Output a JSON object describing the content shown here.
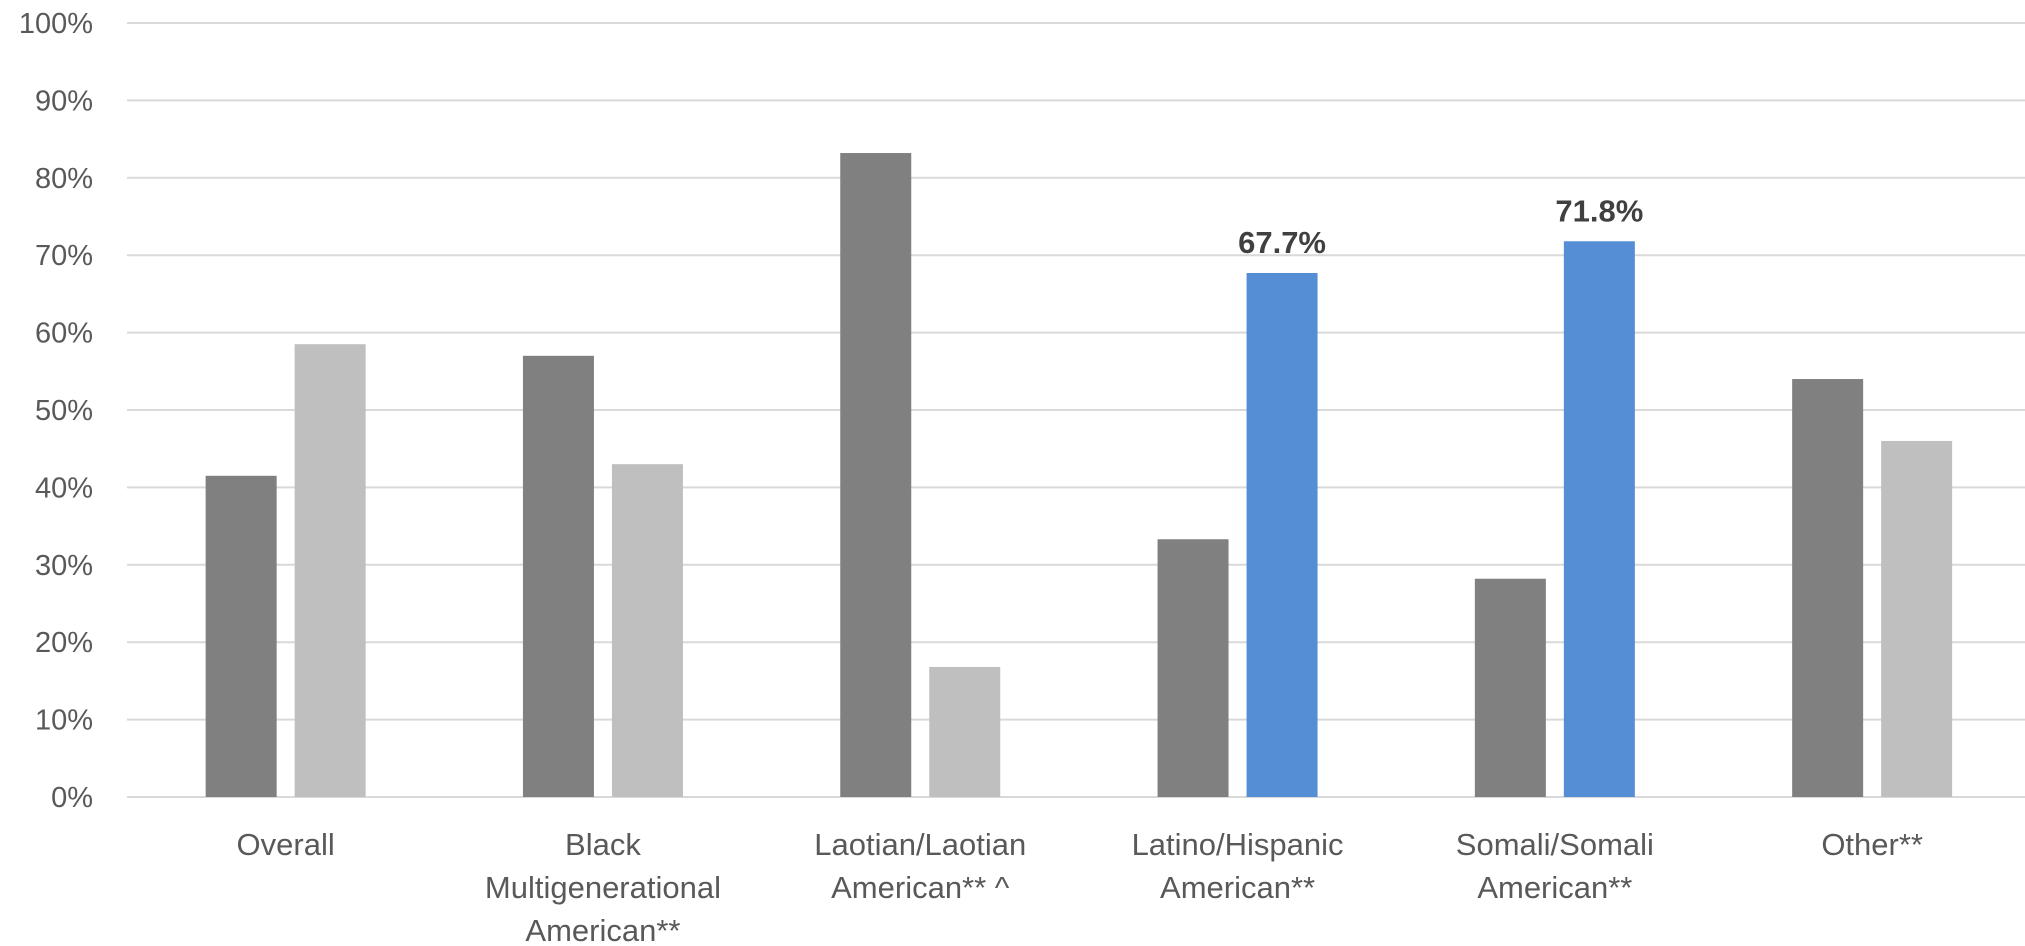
{
  "chart_data": {
    "type": "bar",
    "title": "",
    "xlabel": "",
    "ylabel": "",
    "ylim": [
      0,
      100
    ],
    "yticks": [
      "0%",
      "10%",
      "20%",
      "30%",
      "40%",
      "50%",
      "60%",
      "70%",
      "80%",
      "90%",
      "100%"
    ],
    "grid": true,
    "legend": "none",
    "categories": [
      [
        "Overall"
      ],
      [
        "Black",
        "Multigenerational",
        "American**"
      ],
      [
        "Laotian/Laotian",
        "American** ^"
      ],
      [
        "Latino/Hispanic",
        "American**"
      ],
      [
        "Somali/Somali",
        "American**"
      ],
      [
        "Other**"
      ]
    ],
    "series": [
      {
        "values": [
          41.5,
          57.0,
          83.2,
          33.3,
          28.2,
          54.0
        ],
        "color": "#808080"
      },
      {
        "values": [
          58.5,
          43.0,
          16.8,
          67.7,
          71.8,
          46.0
        ],
        "color": "#bfbfbf",
        "point_colors": {
          "3": "#558ed5",
          "4": "#558ed5"
        }
      }
    ],
    "data_labels": [
      {
        "category_index": 3,
        "series_index": 1,
        "text": "67.7%"
      },
      {
        "category_index": 4,
        "series_index": 1,
        "text": "71.8%"
      }
    ]
  }
}
